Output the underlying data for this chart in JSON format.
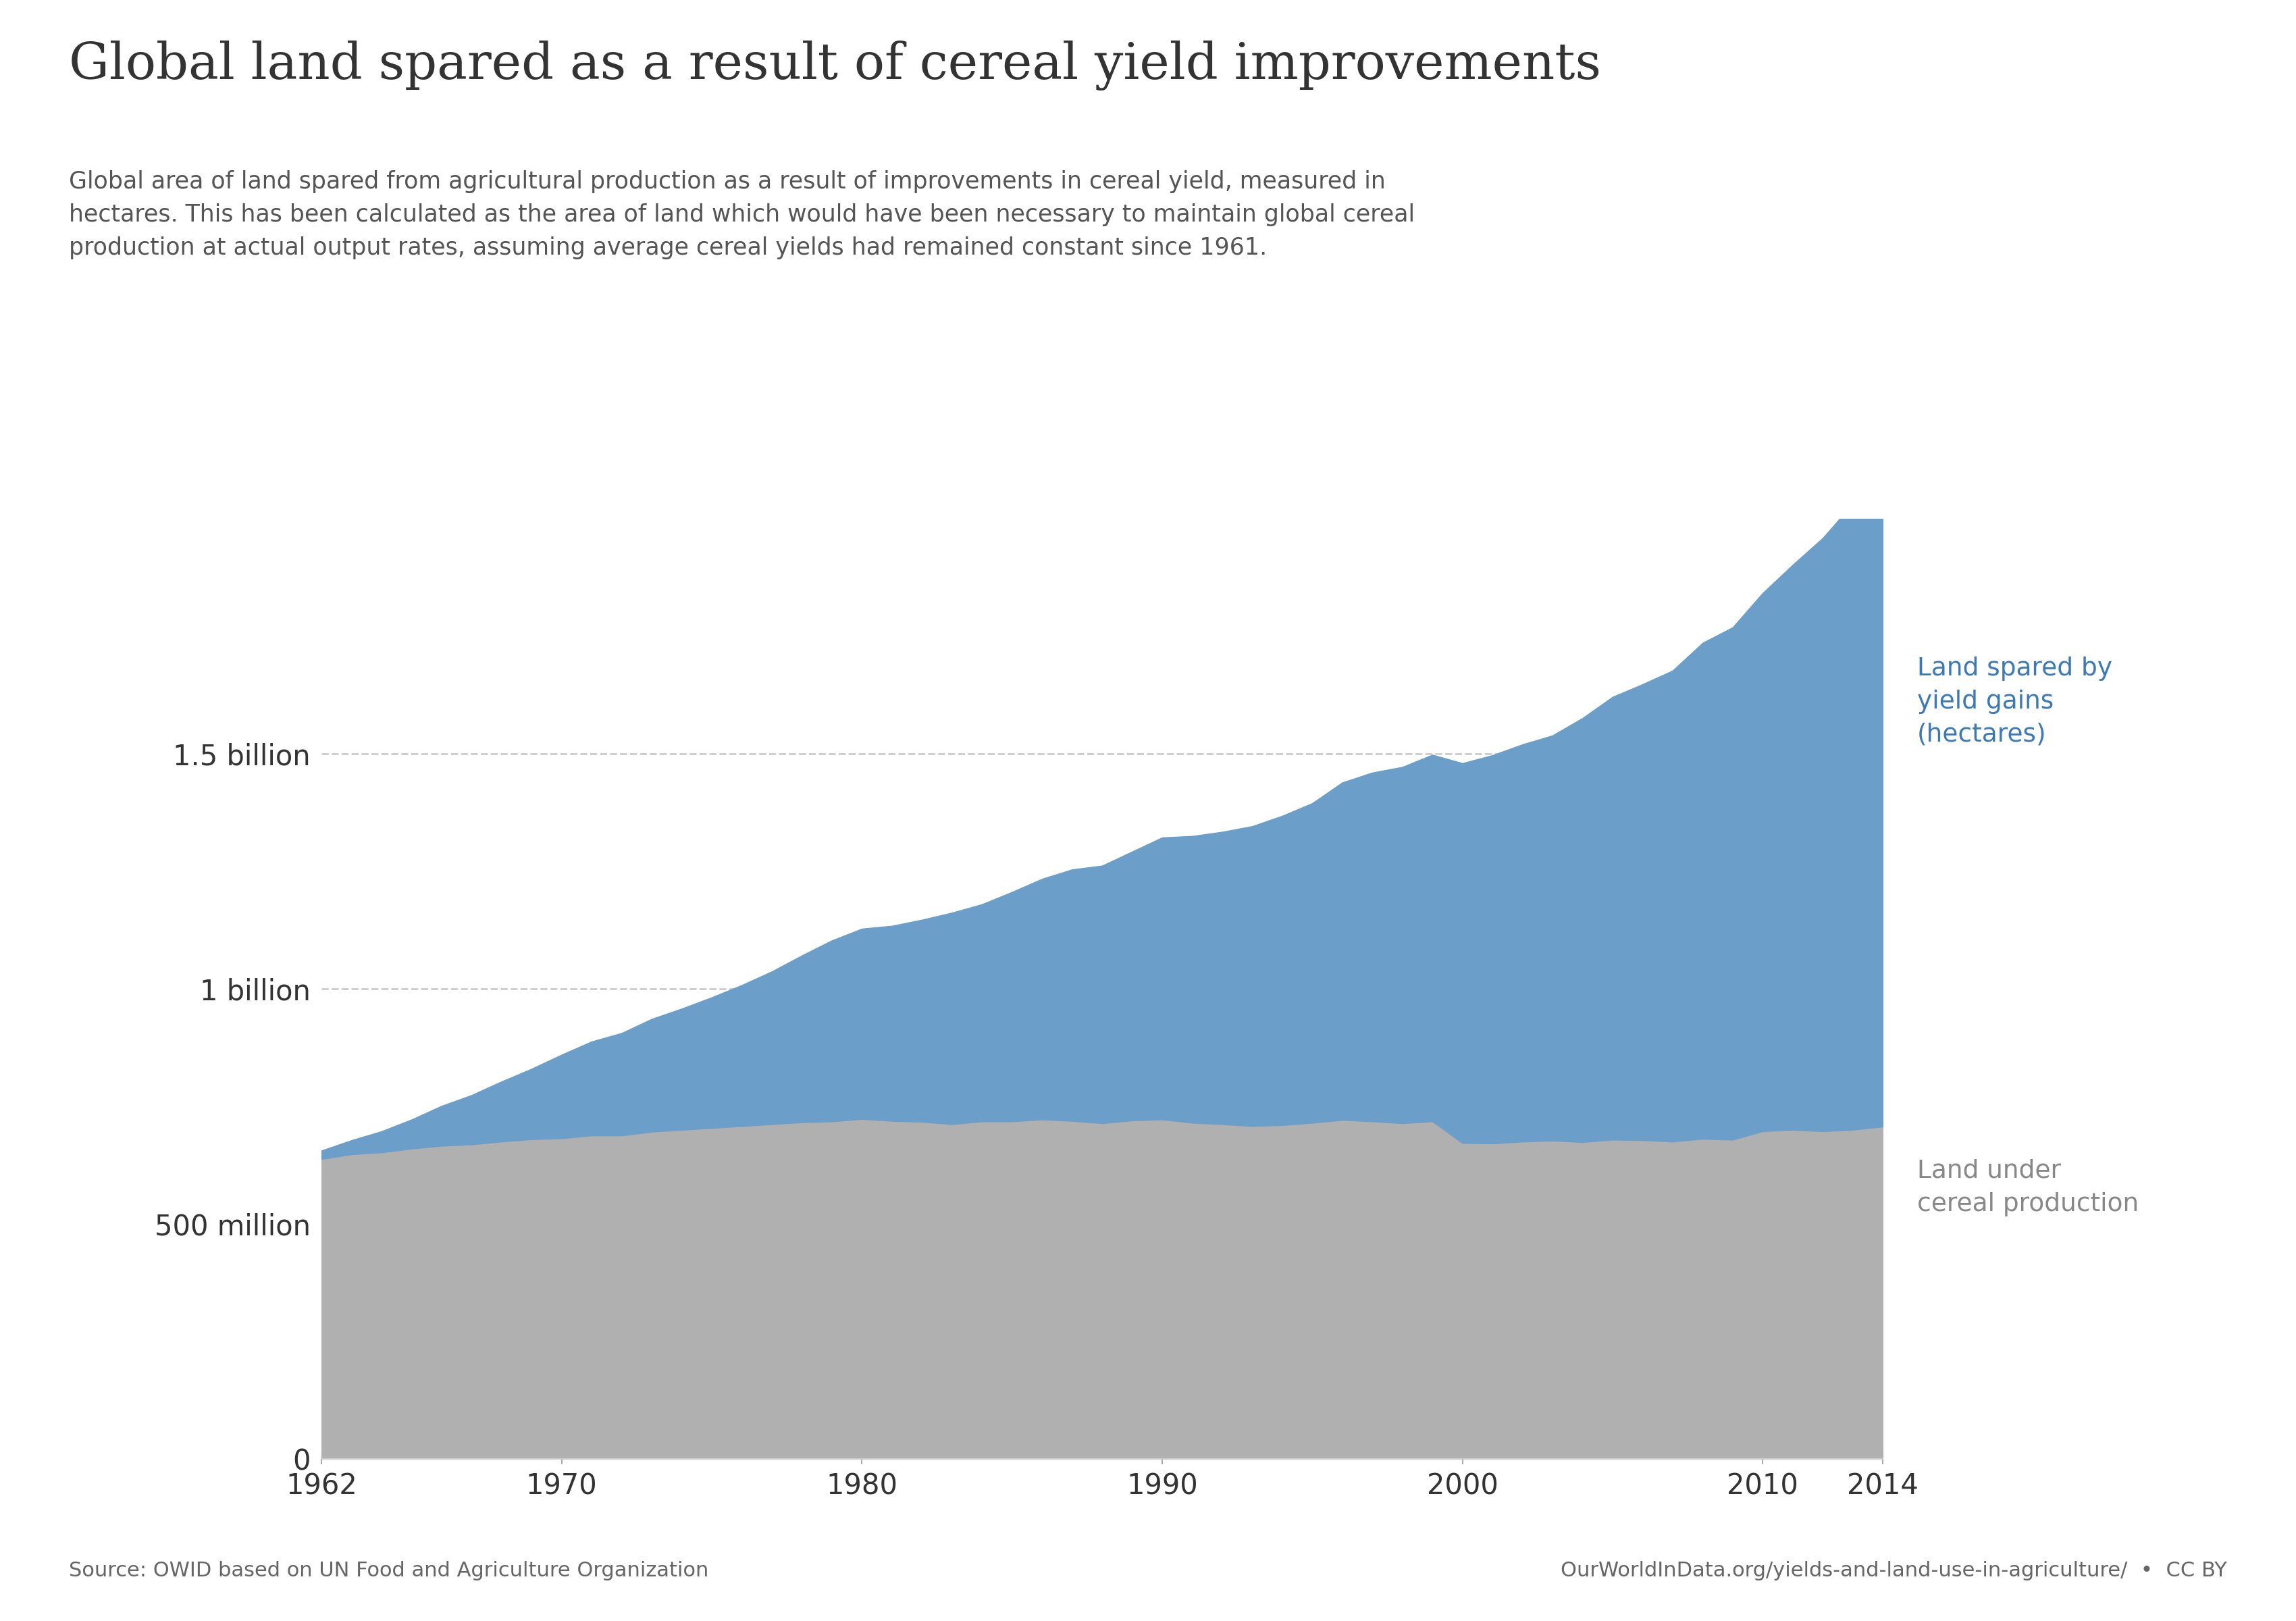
{
  "title": "Global land spared as a result of cereal yield improvements",
  "subtitle": "Global area of land spared from agricultural production as a result of improvements in cereal yield, measured in\nhectares. This has been calculated as the area of land which would have been necessary to maintain global cereal\nproduction at actual output rates, assuming average cereal yields had remained constant since 1961.",
  "source_left": "Source: OWID based on UN Food and Agriculture Organization",
  "source_right": "OurWorldInData.org/yields-and-land-use-in-agriculture/  •  CC BY",
  "label_blue": "Land spared by\nyield gains\n(hectares)",
  "label_gray": "Land under\ncereal production",
  "years": [
    1962,
    1963,
    1964,
    1965,
    1966,
    1967,
    1968,
    1969,
    1970,
    1971,
    1972,
    1973,
    1974,
    1975,
    1976,
    1977,
    1978,
    1979,
    1980,
    1981,
    1982,
    1983,
    1984,
    1985,
    1986,
    1987,
    1988,
    1989,
    1990,
    1991,
    1992,
    1993,
    1994,
    1995,
    1996,
    1997,
    1998,
    1999,
    2000,
    2001,
    2002,
    2003,
    2004,
    2005,
    2006,
    2007,
    2008,
    2009,
    2010,
    2011,
    2012,
    2013,
    2014
  ],
  "land_under_cereal_M": [
    638,
    648,
    652,
    660,
    666,
    669,
    675,
    680,
    682,
    688,
    688,
    696,
    700,
    704,
    708,
    712,
    716,
    718,
    723,
    719,
    717,
    712,
    718,
    718,
    722,
    719,
    714,
    720,
    722,
    715,
    712,
    708,
    710,
    715,
    721,
    718,
    714,
    718,
    672,
    671,
    675,
    677,
    674,
    679,
    678,
    675,
    681,
    679,
    697,
    700,
    697,
    700,
    707
  ],
  "land_spared_M": [
    18,
    30,
    45,
    62,
    85,
    105,
    128,
    150,
    178,
    200,
    218,
    240,
    258,
    278,
    300,
    325,
    355,
    385,
    405,
    415,
    430,
    450,
    462,
    488,
    512,
    535,
    548,
    572,
    600,
    610,
    622,
    638,
    658,
    680,
    718,
    742,
    758,
    780,
    808,
    826,
    845,
    862,
    902,
    942,
    970,
    1002,
    1055,
    1090,
    1145,
    1202,
    1262,
    1332,
    1420
  ],
  "ytick_values": [
    0,
    500000000,
    1000000000,
    1500000000
  ],
  "ytick_labels": [
    "0",
    "500 million",
    "1 billion",
    "1.5 billion"
  ],
  "xtick_values": [
    1962,
    1970,
    1980,
    1990,
    2000,
    2010,
    2014
  ],
  "color_blue": "#6b9ec8",
  "color_gray": "#b0b0b0",
  "color_title": "#333333",
  "color_subtitle": "#555555",
  "color_source": "#666666",
  "color_label_blue": "#3d7ab5",
  "color_label_gray": "#888888",
  "owid_bg_dark": "#1a3a5c",
  "owid_bg_red": "#c0392b",
  "owid_text": "#ffffff",
  "ylim_max": 2000000000,
  "grid_color": "#cccccc",
  "grid_linestyle": "--"
}
